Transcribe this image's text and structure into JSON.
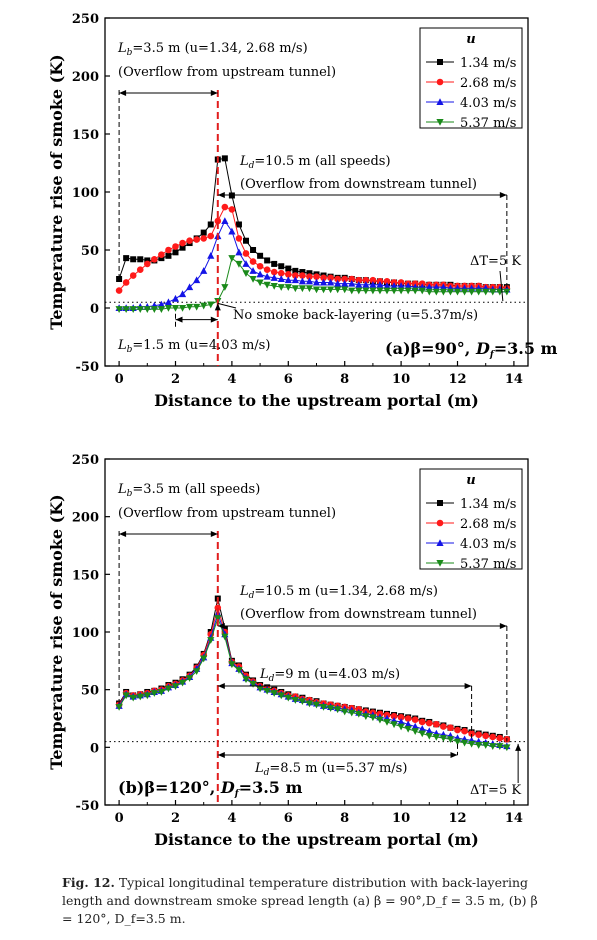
{
  "colors": {
    "s134": "#000000",
    "s268": "#ff1a1a",
    "s403": "#1414e6",
    "s537": "#1a8a1a",
    "marker_line": "#e11d1d"
  },
  "caption": {
    "label": "Fig. 12.",
    "text": "Typical longitudinal temperature distribution with back-layering length and downstream smoke spread length (a) β = 90°,D_f = 3.5 m, (b) β = 120°, D_f=3.5 m."
  },
  "chart_data": [
    {
      "id": "a",
      "type": "line",
      "xlabel": "Distance to the upstream portal (m)",
      "ylabel": "Temperature rise of smoke (K)",
      "xlim": [
        -0.5,
        14.5
      ],
      "ylim": [
        -50,
        250
      ],
      "xticks": [
        "0",
        "2",
        "4",
        "6",
        "8",
        "10",
        "12",
        "14"
      ],
      "yticks": [
        "-50",
        "0",
        "50",
        "100",
        "150",
        "200",
        "250"
      ],
      "legend": {
        "title": "u",
        "position": "top-right",
        "entries": [
          "1.34 m/s",
          "2.68 m/s",
          "4.03 m/s",
          "5.37 m/s"
        ]
      },
      "panel_label": "(a)β=90°, D_f=3.5 m",
      "reference": {
        "threshold_y": 5,
        "source_x": 3.5
      },
      "annotations": {
        "lb_top": "L_b=3.5 m (u=1.34, 2.68 m/s)",
        "lb_top2": "(Overflow from upstream tunnel)",
        "ld": "L_d=10.5 m (all speeds)",
        "ld2": "(Overflow from downstream tunnel)",
        "dt": "ΔT=5 K",
        "noback": "No smoke back-layering (u=5.37m/s)",
        "lb_bot": "L_b=1.5 m (u=4.03 m/s)"
      },
      "series": [
        {
          "name": "1.34 m/s",
          "x": [
            0,
            0.25,
            0.5,
            0.75,
            1,
            1.25,
            1.5,
            1.75,
            2,
            2.25,
            2.5,
            2.75,
            3,
            3.25,
            3.5,
            3.75,
            4,
            4.25,
            4.5,
            4.75,
            5,
            5.25,
            5.5,
            5.75,
            6,
            6.25,
            6.5,
            6.75,
            7,
            7.25,
            7.5,
            7.75,
            8,
            8.25,
            8.5,
            8.75,
            9,
            9.25,
            9.5,
            9.75,
            10,
            10.25,
            10.5,
            10.75,
            11,
            11.25,
            11.5,
            11.75,
            12,
            12.25,
            12.5,
            12.75,
            13,
            13.25,
            13.5,
            13.75
          ],
          "y": [
            25,
            43,
            42,
            42,
            41,
            41,
            43,
            45,
            48,
            52,
            56,
            60,
            65,
            72,
            128,
            129,
            97,
            72,
            58,
            50,
            45,
            41,
            38,
            36,
            34,
            32,
            31,
            30,
            29,
            28,
            27,
            26,
            26,
            25,
            24,
            24,
            23,
            23,
            22,
            22,
            21,
            21,
            21,
            20,
            20,
            20,
            20,
            20,
            19,
            19,
            19,
            19,
            18,
            18,
            18,
            18
          ]
        },
        {
          "name": "2.68 m/s",
          "x": [
            0,
            0.25,
            0.5,
            0.75,
            1,
            1.25,
            1.5,
            1.75,
            2,
            2.25,
            2.5,
            2.75,
            3,
            3.25,
            3.5,
            3.75,
            4,
            4.25,
            4.5,
            4.75,
            5,
            5.25,
            5.5,
            5.75,
            6,
            6.25,
            6.5,
            6.75,
            7,
            7.25,
            7.5,
            7.75,
            8,
            8.25,
            8.5,
            8.75,
            9,
            9.25,
            9.5,
            9.75,
            10,
            10.25,
            10.5,
            10.75,
            11,
            11.25,
            11.5,
            11.75,
            12,
            12.25,
            12.5,
            12.75,
            13,
            13.25,
            13.5,
            13.75
          ],
          "y": [
            15,
            22,
            28,
            33,
            38,
            42,
            46,
            50,
            53,
            56,
            58,
            59,
            60,
            62,
            75,
            87,
            85,
            60,
            47,
            40,
            36,
            33,
            31,
            30,
            29,
            28,
            28,
            27,
            27,
            26,
            26,
            25,
            25,
            25,
            24,
            24,
            24,
            23,
            23,
            22,
            22,
            21,
            21,
            21,
            20,
            20,
            20,
            19,
            19,
            19,
            19,
            19,
            18,
            18,
            18,
            17
          ]
        },
        {
          "name": "4.03 m/s",
          "x": [
            0,
            0.25,
            0.5,
            0.75,
            1,
            1.25,
            1.5,
            1.75,
            2,
            2.25,
            2.5,
            2.75,
            3,
            3.25,
            3.5,
            3.75,
            4,
            4.25,
            4.5,
            4.75,
            5,
            5.25,
            5.5,
            5.75,
            6,
            6.25,
            6.5,
            6.75,
            7,
            7.25,
            7.5,
            7.75,
            8,
            8.25,
            8.5,
            8.75,
            9,
            9.25,
            9.5,
            9.75,
            10,
            10.25,
            10.5,
            10.75,
            11,
            11.25,
            11.5,
            11.75,
            12,
            12.25,
            12.5,
            12.75,
            13,
            13.25,
            13.5,
            13.75
          ],
          "y": [
            0,
            0,
            0,
            1,
            1,
            2,
            3,
            5,
            8,
            12,
            18,
            24,
            32,
            45,
            62,
            75,
            66,
            48,
            38,
            32,
            29,
            27,
            26,
            25,
            24,
            24,
            23,
            23,
            22,
            22,
            22,
            21,
            21,
            21,
            20,
            20,
            20,
            20,
            19,
            19,
            19,
            19,
            18,
            18,
            18,
            18,
            18,
            17,
            17,
            17,
            17,
            17,
            17,
            16,
            16,
            16
          ]
        },
        {
          "name": "5.37 m/s",
          "x": [
            0,
            0.25,
            0.5,
            0.75,
            1,
            1.25,
            1.5,
            1.75,
            2,
            2.25,
            2.5,
            2.75,
            3,
            3.25,
            3.5,
            3.75,
            4,
            4.25,
            4.5,
            4.75,
            5,
            5.25,
            5.5,
            5.75,
            6,
            6.25,
            6.5,
            6.75,
            7,
            7.25,
            7.5,
            7.75,
            8,
            8.25,
            8.5,
            8.75,
            9,
            9.25,
            9.5,
            9.75,
            10,
            10.25,
            10.5,
            10.75,
            11,
            11.25,
            11.5,
            11.75,
            12,
            12.25,
            12.5,
            12.75,
            13,
            13.25,
            13.5,
            13.75
          ],
          "y": [
            -1,
            -1,
            -1,
            -1,
            -1,
            -1,
            -1,
            0,
            0,
            0,
            1,
            1,
            2,
            3,
            6,
            18,
            43,
            38,
            30,
            25,
            22,
            20,
            19,
            18,
            18,
            17,
            17,
            17,
            16,
            16,
            16,
            16,
            16,
            15,
            15,
            15,
            15,
            15,
            15,
            15,
            15,
            15,
            15,
            15,
            14,
            14,
            14,
            14,
            14,
            14,
            14,
            14,
            14,
            14,
            14,
            14
          ]
        }
      ]
    },
    {
      "id": "b",
      "type": "line",
      "xlabel": "Distance to the upstream portal (m)",
      "ylabel": "Temperature rise of smoke (K)",
      "xlim": [
        -0.5,
        14.5
      ],
      "ylim": [
        -50,
        250
      ],
      "xticks": [
        "0",
        "2",
        "4",
        "6",
        "8",
        "10",
        "12",
        "14"
      ],
      "yticks": [
        "-50",
        "0",
        "50",
        "100",
        "150",
        "200",
        "250"
      ],
      "legend": {
        "title": "u",
        "position": "top-right",
        "entries": [
          "1.34 m/s",
          "2.68 m/s",
          "4.03 m/s",
          "5.37 m/s"
        ]
      },
      "panel_label": "(b)β=120°, D_f=3.5 m",
      "reference": {
        "threshold_y": 5,
        "source_x": 3.5
      },
      "annotations": {
        "lb_top": "L_b=3.5 m (all speeds)",
        "lb_top2": "(Overflow from upstream tunnel)",
        "ld": "L_d=10.5 m (u=1.34, 2.68 m/s)",
        "ld2": "(Overflow from downstream tunnel)",
        "ld9": "L_d=9 m (u=4.03 m/s)",
        "ld85": "L_d=8.5 m (u=5.37 m/s)",
        "dt": "ΔT=5 K"
      },
      "series": [
        {
          "name": "1.34 m/s",
          "x": [
            0,
            0.25,
            0.5,
            0.75,
            1,
            1.25,
            1.5,
            1.75,
            2,
            2.25,
            2.5,
            2.75,
            3,
            3.25,
            3.5,
            3.75,
            4,
            4.25,
            4.5,
            4.75,
            5,
            5.25,
            5.5,
            5.75,
            6,
            6.25,
            6.5,
            6.75,
            7,
            7.25,
            7.5,
            7.75,
            8,
            8.25,
            8.5,
            8.75,
            9,
            9.25,
            9.5,
            9.75,
            10,
            10.25,
            10.5,
            10.75,
            11,
            11.25,
            11.5,
            11.75,
            12,
            12.25,
            12.5,
            12.75,
            13,
            13.25,
            13.5,
            13.75
          ],
          "y": [
            38,
            48,
            45,
            46,
            48,
            49,
            51,
            54,
            56,
            59,
            63,
            70,
            81,
            100,
            129,
            103,
            75,
            71,
            63,
            58,
            54,
            52,
            50,
            48,
            46,
            44,
            43,
            41,
            40,
            38,
            37,
            36,
            35,
            34,
            33,
            32,
            31,
            30,
            29,
            28,
            27,
            26,
            25,
            23,
            22,
            20,
            19,
            17,
            16,
            15,
            13,
            12,
            11,
            10,
            9,
            7
          ]
        },
        {
          "name": "2.68 m/s",
          "x": [
            0,
            0.25,
            0.5,
            0.75,
            1,
            1.25,
            1.5,
            1.75,
            2,
            2.25,
            2.5,
            2.75,
            3,
            3.25,
            3.5,
            3.75,
            4,
            4.25,
            4.5,
            4.75,
            5,
            5.25,
            5.5,
            5.75,
            6,
            6.25,
            6.5,
            6.75,
            7,
            7.25,
            7.5,
            7.75,
            8,
            8.25,
            8.5,
            8.75,
            9,
            9.25,
            9.5,
            9.75,
            10,
            10.25,
            10.5,
            10.75,
            11,
            11.25,
            11.5,
            11.75,
            12,
            12.25,
            12.5,
            12.75,
            13,
            13.25,
            13.5,
            13.75
          ],
          "y": [
            37,
            47,
            45,
            46,
            47,
            49,
            50,
            53,
            55,
            58,
            62,
            69,
            80,
            98,
            121,
            100,
            74,
            70,
            62,
            57,
            53,
            51,
            49,
            47,
            45,
            44,
            42,
            41,
            39,
            38,
            37,
            36,
            35,
            34,
            33,
            31,
            30,
            29,
            28,
            27,
            26,
            25,
            24,
            22,
            21,
            20,
            18,
            17,
            15,
            14,
            12,
            11,
            10,
            9,
            8,
            7
          ]
        },
        {
          "name": "4.03 m/s",
          "x": [
            0,
            0.25,
            0.5,
            0.75,
            1,
            1.25,
            1.5,
            1.75,
            2,
            2.25,
            2.5,
            2.75,
            3,
            3.25,
            3.5,
            3.75,
            4,
            4.25,
            4.5,
            4.75,
            5,
            5.25,
            5.5,
            5.75,
            6,
            6.25,
            6.5,
            6.75,
            7,
            7.25,
            7.5,
            7.75,
            8,
            8.25,
            8.5,
            8.75,
            9,
            9.25,
            9.5,
            9.75,
            10,
            10.25,
            10.5,
            10.75,
            11,
            11.25,
            11.5,
            11.75,
            12,
            12.25,
            12.5,
            12.75,
            13,
            13.25,
            13.5,
            13.75
          ],
          "y": [
            36,
            46,
            44,
            45,
            46,
            48,
            49,
            52,
            54,
            57,
            61,
            68,
            78,
            95,
            116,
            98,
            73,
            68,
            60,
            56,
            52,
            50,
            48,
            46,
            44,
            42,
            41,
            39,
            38,
            36,
            35,
            34,
            33,
            32,
            30,
            29,
            28,
            26,
            25,
            23,
            22,
            20,
            18,
            16,
            14,
            12,
            11,
            10,
            8,
            7,
            6,
            5,
            4,
            3,
            2,
            1
          ]
        },
        {
          "name": "5.37 m/s",
          "x": [
            0,
            0.25,
            0.5,
            0.75,
            1,
            1.25,
            1.5,
            1.75,
            2,
            2.25,
            2.5,
            2.75,
            3,
            3.25,
            3.5,
            3.75,
            4,
            4.25,
            4.5,
            4.75,
            5,
            5.25,
            5.5,
            5.75,
            6,
            6.25,
            6.5,
            6.75,
            7,
            7.25,
            7.5,
            7.75,
            8,
            8.25,
            8.5,
            8.75,
            9,
            9.25,
            9.5,
            9.75,
            10,
            10.25,
            10.5,
            10.75,
            11,
            11.25,
            11.5,
            11.75,
            12,
            12.25,
            12.5,
            12.75,
            13,
            13.25,
            13.5,
            13.75
          ],
          "y": [
            35,
            45,
            43,
            44,
            45,
            47,
            48,
            51,
            53,
            56,
            60,
            66,
            77,
            93,
            112,
            96,
            72,
            67,
            59,
            55,
            51,
            49,
            47,
            45,
            43,
            41,
            40,
            38,
            37,
            35,
            34,
            33,
            31,
            30,
            29,
            27,
            26,
            24,
            22,
            20,
            18,
            16,
            14,
            12,
            10,
            9,
            8,
            7,
            5,
            4,
            3,
            2,
            2,
            1,
            1,
            0
          ]
        }
      ]
    }
  ]
}
